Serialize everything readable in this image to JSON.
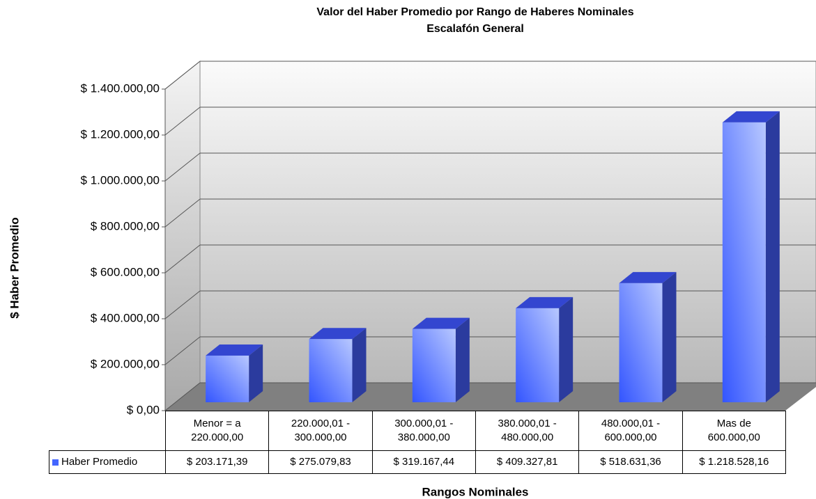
{
  "chart_data": {
    "type": "bar3d",
    "title": "Valor del Haber Promedio por Rango de Haberes Nominales",
    "subtitle": "Escalafón General",
    "y_label": "$ Haber Promedio",
    "x_label": "Rangos Nominales",
    "categories": [
      "Menor = a\n220.000,00",
      "220.000,01 -\n300.000,00",
      "300.000,01 -\n380.000,00",
      "380.000,01 -\n480.000,00",
      "480.000,01 -\n600.000,00",
      "Mas de\n600.000,00"
    ],
    "series": [
      {
        "name": "Haber Promedio",
        "color": "#4466ff",
        "values": [
          203171.39,
          275079.83,
          319167.44,
          409327.81,
          518631.36,
          1218528.16
        ],
        "value_labels": [
          "$ 203.171,39",
          "$ 275.079,83",
          "$ 319.167,44",
          "$ 409.327,81",
          "$ 518.631,36",
          "$ 1.218.528,16"
        ]
      }
    ],
    "ylim": [
      0,
      1400000
    ],
    "yticks": [
      {
        "value": 0,
        "label": "$ 0,00"
      },
      {
        "value": 200000,
        "label": "$ 200.000,00"
      },
      {
        "value": 400000,
        "label": "$ 400.000,00"
      },
      {
        "value": 600000,
        "label": "$ 600.000,00"
      },
      {
        "value": 800000,
        "label": "$ 800.000,00"
      },
      {
        "value": 1000000,
        "label": "$ 1.000.000,00"
      },
      {
        "value": 1200000,
        "label": "$ 1.200.000,00"
      },
      {
        "value": 1400000,
        "label": "$ 1.400.000,00"
      }
    ],
    "grid": true,
    "legend": "table"
  }
}
